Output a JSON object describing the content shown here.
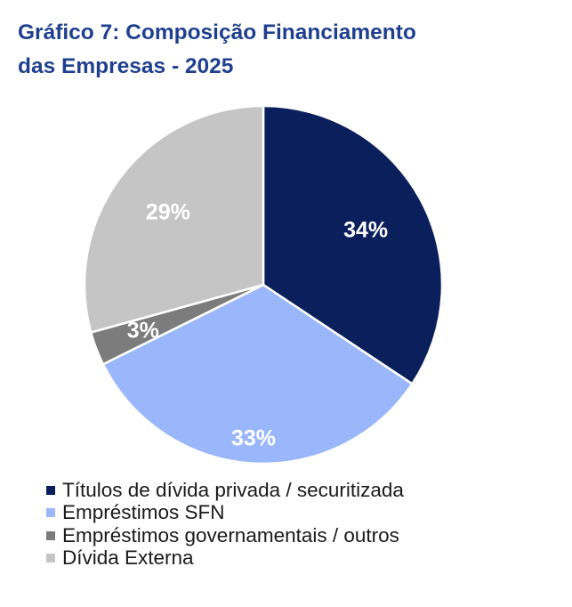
{
  "title_lines": [
    "Gráfico 7: Composição Financiamento",
    "das Empresas - 2025"
  ],
  "chart_data": {
    "type": "pie",
    "title": "Gráfico 7: Composição Financiamento das Empresas - 2025",
    "slices": [
      {
        "label": "Títulos de dívida privada / securitizada",
        "value": 34,
        "display": "34%",
        "color": "#0b1f5c"
      },
      {
        "label": "Empréstimos SFN",
        "value": 33,
        "display": "33%",
        "color": "#9ab7fb"
      },
      {
        "label": "Empréstimos governamentais / outros",
        "value": 3,
        "display": "3%",
        "color": "#7c7c7c"
      },
      {
        "label": "Dívida Externa",
        "value": 29,
        "display": "29%",
        "color": "#c5c5c5"
      }
    ],
    "legend_position": "bottom"
  }
}
